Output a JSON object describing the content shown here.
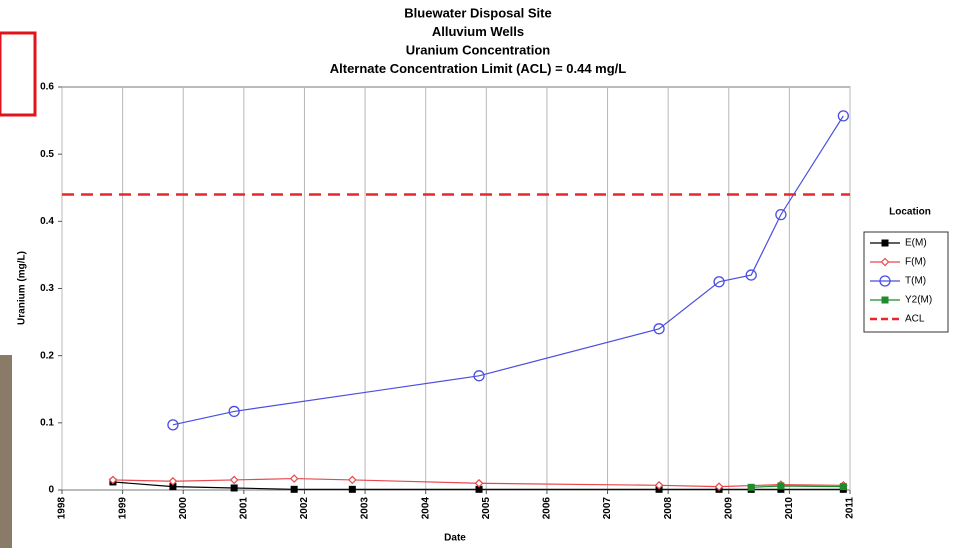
{
  "chart_data": {
    "type": "line",
    "title": [
      "Bluewater Disposal Site",
      "Alluvium Wells",
      "Uranium Concentration",
      "Alternate Concentration Limit (ACL) = 0.44 mg/L"
    ],
    "x_label": "Date",
    "y_label": "Uranium (mg/L)",
    "legend_title": "Location",
    "legend": "right",
    "xlim": [
      1998,
      2011
    ],
    "xticks": [
      1998,
      1999,
      2000,
      2001,
      2002,
      2003,
      2004,
      2005,
      2006,
      2007,
      2008,
      2009,
      2010,
      2011
    ],
    "ylim": [
      0,
      0.6
    ],
    "yticks": [
      0,
      0.1,
      0.2,
      0.3,
      0.4,
      0.5,
      0.6
    ],
    "grid": "x",
    "series": [
      {
        "name": "E(M)",
        "color": "#000000",
        "marker": "square",
        "x": [
          1998.84,
          1999.83,
          2000.84,
          2001.83,
          2002.79,
          2004.88,
          2007.85,
          2008.84,
          2009.37,
          2009.86,
          2010.89
        ],
        "values": [
          0.012,
          0.005,
          0.003,
          0.001,
          0.001,
          0.001,
          0.001,
          0.001,
          0.001,
          0.001,
          0.001
        ]
      },
      {
        "name": "F(M)",
        "color": "#e8484c",
        "marker": "diamond",
        "x": [
          1998.84,
          1999.83,
          2000.84,
          2001.83,
          2002.79,
          2004.88,
          2007.85,
          2008.84,
          2009.86,
          2010.89
        ],
        "values": [
          0.015,
          0.013,
          0.015,
          0.017,
          0.015,
          0.01,
          0.007,
          0.005,
          0.008,
          0.007
        ]
      },
      {
        "name": "T(M)",
        "color": "#4a4ee0",
        "marker": "circle",
        "x": [
          1999.83,
          2000.84,
          2004.88,
          2007.85,
          2008.84,
          2009.37,
          2009.86,
          2010.89
        ],
        "values": [
          0.097,
          0.117,
          0.17,
          0.24,
          0.31,
          0.32,
          0.41,
          0.557
        ]
      },
      {
        "name": "Y2(M)",
        "color": "#1e8c2a",
        "marker": "square",
        "x": [
          2009.37,
          2009.86,
          2010.89
        ],
        "values": [
          0.004,
          0.006,
          0.005
        ]
      },
      {
        "name": "ACL",
        "color": "#e8262c",
        "marker": "none",
        "dashed": true,
        "x": [
          1998,
          2011
        ],
        "values": [
          0.44,
          0.44
        ]
      }
    ]
  }
}
